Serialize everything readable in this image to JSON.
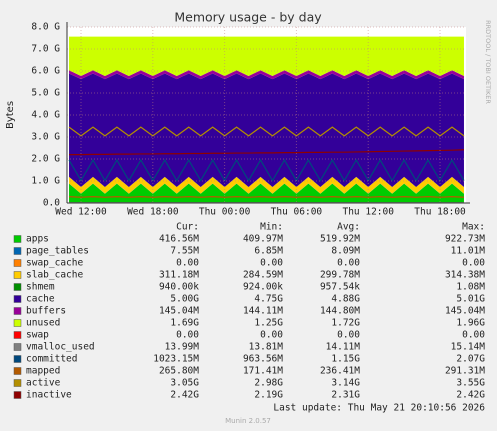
{
  "chart_data": {
    "type": "area",
    "title": "Memory usage - by day",
    "y_label": "Bytes",
    "side_text": "RRDTOOL / TOBI OETIKER",
    "footer": "Last update: Thu May 21 20:10:56 2026",
    "version": "Munin 2.0.57",
    "legend_columns": [
      "Cur:",
      "Min:",
      "Avg:",
      "Max:"
    ],
    "grid": true,
    "xlim": [
      10.83,
      44.17
    ],
    "xticks": [
      {
        "value": 12,
        "label": "Wed 12:00"
      },
      {
        "value": 18,
        "label": "Wed 18:00"
      },
      {
        "value": 24,
        "label": "Thu 00:00"
      },
      {
        "value": 30,
        "label": "Thu 06:00"
      },
      {
        "value": 36,
        "label": "Thu 12:00"
      },
      {
        "value": 42,
        "label": "Thu 18:00"
      }
    ],
    "ylim": [
      0,
      8
    ],
    "yticks": [
      {
        "value": 0,
        "label": "0.0"
      },
      {
        "value": 1,
        "label": "1.0 G"
      },
      {
        "value": 2,
        "label": "2.0 G"
      },
      {
        "value": 3,
        "label": "3.0 G"
      },
      {
        "value": 4,
        "label": "4.0 G"
      },
      {
        "value": 5,
        "label": "5.0 G"
      },
      {
        "value": 6,
        "label": "6.0 G"
      },
      {
        "value": 7,
        "label": "7.0 G"
      },
      {
        "value": 8,
        "label": "8.0 G"
      }
    ],
    "x": [
      11,
      12,
      13,
      14,
      15,
      16,
      17,
      18,
      19,
      20,
      21,
      22,
      23,
      24,
      25,
      26,
      27,
      28,
      29,
      30,
      31,
      32,
      33,
      34,
      35,
      36,
      37,
      38,
      39,
      40,
      41,
      42,
      43,
      44
    ],
    "series": [
      {
        "name": "apps",
        "color": "#00cc00",
        "draw": "area",
        "stats": [
          "416.56M",
          "409.97M",
          "519.92M",
          "922.73M"
        ],
        "values": [
          0.88,
          0.42,
          0.88,
          0.42,
          0.88,
          0.42,
          0.88,
          0.42,
          0.88,
          0.42,
          0.88,
          0.42,
          0.88,
          0.42,
          0.88,
          0.42,
          0.88,
          0.42,
          0.88,
          0.42,
          0.88,
          0.42,
          0.88,
          0.42,
          0.88,
          0.42,
          0.88,
          0.42,
          0.88,
          0.42,
          0.88,
          0.42,
          0.88,
          0.42
        ]
      },
      {
        "name": "page_tables",
        "color": "#0066b3",
        "draw": "area",
        "stats": [
          "7.55M",
          "6.85M",
          "8.09M",
          "11.01M"
        ],
        "values": [
          0.0075,
          0.0075,
          0.0075,
          0.0075,
          0.0075,
          0.0075,
          0.0075,
          0.0075,
          0.0075,
          0.0075,
          0.0075,
          0.0075,
          0.0075,
          0.0075,
          0.0075,
          0.0075,
          0.0075,
          0.0075,
          0.0075,
          0.0075,
          0.0075,
          0.0075,
          0.0075,
          0.0075,
          0.0075,
          0.0075,
          0.0075,
          0.0075,
          0.0075,
          0.0075,
          0.0075,
          0.0075,
          0.0075,
          0.0075
        ]
      },
      {
        "name": "swap_cache",
        "color": "#ff8000",
        "draw": "area",
        "stats": [
          "0.00",
          "0.00",
          "0.00",
          "0.00"
        ],
        "values": [
          0,
          0,
          0,
          0,
          0,
          0,
          0,
          0,
          0,
          0,
          0,
          0,
          0,
          0,
          0,
          0,
          0,
          0,
          0,
          0,
          0,
          0,
          0,
          0,
          0,
          0,
          0,
          0,
          0,
          0,
          0,
          0,
          0,
          0
        ]
      },
      {
        "name": "slab_cache",
        "color": "#ffcc00",
        "draw": "area",
        "stats": [
          "311.18M",
          "284.59M",
          "299.78M",
          "314.38M"
        ],
        "values": [
          0.3,
          0.3,
          0.3,
          0.3,
          0.3,
          0.3,
          0.3,
          0.3,
          0.3,
          0.3,
          0.3,
          0.3,
          0.3,
          0.3,
          0.3,
          0.3,
          0.3,
          0.3,
          0.3,
          0.3,
          0.3,
          0.3,
          0.3,
          0.3,
          0.3,
          0.3,
          0.3,
          0.3,
          0.3,
          0.3,
          0.3,
          0.3,
          0.3,
          0.3
        ]
      },
      {
        "name": "shmem",
        "color": "#008f00",
        "draw": "area",
        "stats": [
          "940.00k",
          "924.00k",
          "957.54k",
          "1.08M"
        ],
        "values": [
          0.00094,
          0.00094,
          0.00094,
          0.00094,
          0.00094,
          0.00094,
          0.00094,
          0.00094,
          0.00094,
          0.00094,
          0.00094,
          0.00094,
          0.00094,
          0.00094,
          0.00094,
          0.00094,
          0.00094,
          0.00094,
          0.00094,
          0.00094,
          0.00094,
          0.00094,
          0.00094,
          0.00094,
          0.00094,
          0.00094,
          0.00094,
          0.00094,
          0.00094,
          0.00094,
          0.00094,
          0.00094,
          0.00094,
          0.00094
        ]
      },
      {
        "name": "cache",
        "color": "#330099",
        "draw": "area",
        "stats": [
          "5.00G",
          "4.75G",
          "4.88G",
          "5.01G"
        ],
        "values": [
          4.7,
          4.9,
          4.7,
          4.9,
          4.7,
          4.9,
          4.7,
          4.9,
          4.7,
          4.9,
          4.7,
          4.9,
          4.7,
          4.9,
          4.7,
          4.9,
          4.7,
          4.9,
          4.7,
          4.9,
          4.7,
          4.9,
          4.7,
          4.9,
          4.7,
          4.9,
          4.7,
          4.9,
          4.7,
          4.9,
          4.7,
          4.9,
          4.7,
          4.9
        ]
      },
      {
        "name": "buffers",
        "color": "#990099",
        "draw": "area",
        "stats": [
          "145.04M",
          "144.11M",
          "144.80M",
          "145.04M"
        ],
        "values": [
          0.145,
          0.145,
          0.145,
          0.145,
          0.145,
          0.145,
          0.145,
          0.145,
          0.145,
          0.145,
          0.145,
          0.145,
          0.145,
          0.145,
          0.145,
          0.145,
          0.145,
          0.145,
          0.145,
          0.145,
          0.145,
          0.145,
          0.145,
          0.145,
          0.145,
          0.145,
          0.145,
          0.145,
          0.145,
          0.145,
          0.145,
          0.145,
          0.145,
          0.145
        ]
      },
      {
        "name": "unused",
        "color": "#ccff00",
        "draw": "area",
        "stats": [
          "1.69G",
          "1.25G",
          "1.72G",
          "1.96G"
        ],
        "values": [
          1.53,
          1.79,
          1.53,
          1.79,
          1.53,
          1.79,
          1.53,
          1.79,
          1.53,
          1.79,
          1.53,
          1.79,
          1.53,
          1.79,
          1.53,
          1.79,
          1.53,
          1.79,
          1.53,
          1.79,
          1.53,
          1.79,
          1.53,
          1.79,
          1.53,
          1.79,
          1.53,
          1.79,
          1.53,
          1.79,
          1.53,
          1.79,
          1.53,
          1.79
        ]
      },
      {
        "name": "swap",
        "color": "#ff0000",
        "draw": "area",
        "stats": [
          "0.00",
          "0.00",
          "0.00",
          "0.00"
        ],
        "values": [
          0,
          0,
          0,
          0,
          0,
          0,
          0,
          0,
          0,
          0,
          0,
          0,
          0,
          0,
          0,
          0,
          0,
          0,
          0,
          0,
          0,
          0,
          0,
          0,
          0,
          0,
          0,
          0,
          0,
          0,
          0,
          0,
          0,
          0
        ]
      },
      {
        "name": "vmalloc_used",
        "color": "#808080",
        "draw": "line",
        "stats": [
          "13.99M",
          "13.81M",
          "14.11M",
          "15.14M"
        ],
        "values": [
          0.014,
          0.014,
          0.014,
          0.014,
          0.014,
          0.014,
          0.014,
          0.014,
          0.014,
          0.014,
          0.014,
          0.014,
          0.014,
          0.014,
          0.014,
          0.014,
          0.014,
          0.014,
          0.014,
          0.014,
          0.014,
          0.014,
          0.014,
          0.014,
          0.014,
          0.014,
          0.014,
          0.014,
          0.014,
          0.014,
          0.014,
          0.014,
          0.014,
          0.014
        ]
      },
      {
        "name": "committed",
        "color": "#00487d",
        "draw": "line",
        "stats": [
          "1023.15M",
          "963.56M",
          "1.15G",
          "2.07G"
        ],
        "values": [
          1.95,
          1.02,
          1.95,
          1.02,
          1.95,
          1.02,
          1.95,
          1.02,
          1.95,
          1.02,
          1.95,
          1.02,
          1.95,
          1.02,
          1.95,
          1.02,
          1.95,
          1.02,
          1.95,
          1.02,
          1.95,
          1.02,
          1.95,
          1.02,
          1.95,
          1.02,
          1.95,
          1.02,
          1.95,
          1.02,
          1.95,
          1.02,
          1.95,
          1.02
        ]
      },
      {
        "name": "mapped",
        "color": "#b35a00",
        "draw": "line",
        "stats": [
          "265.80M",
          "171.41M",
          "236.41M",
          "291.31M"
        ],
        "values": [
          0.29,
          0.26,
          0.29,
          0.26,
          0.29,
          0.26,
          0.29,
          0.26,
          0.29,
          0.26,
          0.29,
          0.26,
          0.29,
          0.26,
          0.29,
          0.26,
          0.29,
          0.26,
          0.29,
          0.26,
          0.29,
          0.26,
          0.29,
          0.26,
          0.29,
          0.26,
          0.29,
          0.26,
          0.29,
          0.26,
          0.29,
          0.26,
          0.29,
          0.26
        ]
      },
      {
        "name": "active",
        "color": "#b38f00",
        "draw": "line",
        "stats": [
          "3.05G",
          "2.98G",
          "3.14G",
          "3.55G"
        ],
        "values": [
          3.45,
          3.05,
          3.45,
          3.05,
          3.45,
          3.05,
          3.45,
          3.05,
          3.45,
          3.05,
          3.45,
          3.05,
          3.45,
          3.05,
          3.45,
          3.05,
          3.45,
          3.05,
          3.45,
          3.05,
          3.45,
          3.05,
          3.45,
          3.05,
          3.45,
          3.05,
          3.45,
          3.05,
          3.45,
          3.05,
          3.45,
          3.05,
          3.45,
          3.05
        ]
      },
      {
        "name": "inactive",
        "color": "#8f0000",
        "draw": "line",
        "stats": [
          "2.42G",
          "2.19G",
          "2.31G",
          "2.42G"
        ],
        "values": [
          2.2,
          2.2,
          2.21,
          2.21,
          2.22,
          2.22,
          2.23,
          2.23,
          2.24,
          2.24,
          2.25,
          2.25,
          2.26,
          2.26,
          2.27,
          2.27,
          2.28,
          2.28,
          2.29,
          2.29,
          2.3,
          2.3,
          2.31,
          2.31,
          2.32,
          2.33,
          2.34,
          2.35,
          2.36,
          2.37,
          2.38,
          2.39,
          2.4,
          2.42
        ]
      }
    ]
  }
}
